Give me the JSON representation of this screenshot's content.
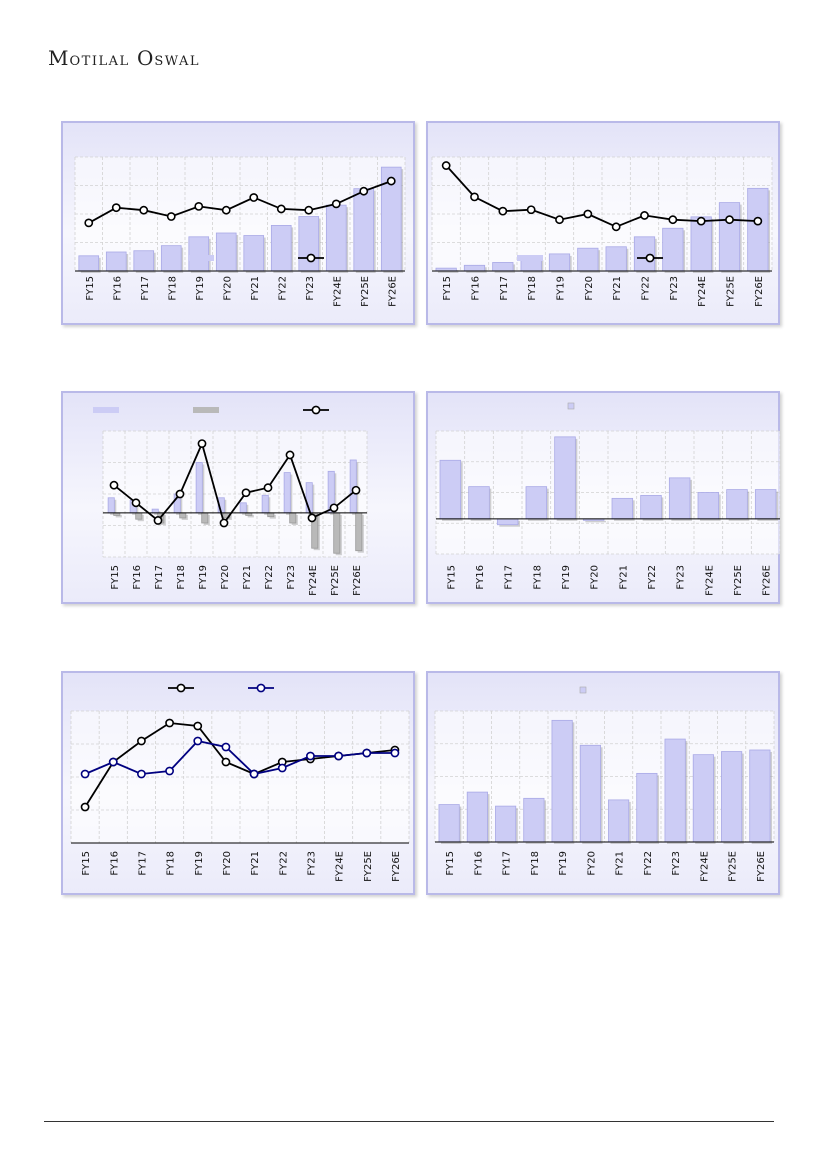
{
  "brand": {
    "first_cap": "M",
    "first_rest": "OTILAL",
    "second_cap": "O",
    "second_rest": "SWAL"
  },
  "colors": {
    "bar": "#ccccf5",
    "bar_stroke": "#a9a9e6",
    "bar_neg": "#b9b9b9",
    "line": "#000000",
    "line2": "#000080",
    "marker_fill": "#ffffff"
  },
  "chart_data": [
    {
      "id": "c1",
      "type": "bar+line",
      "categories": [
        "FY15",
        "FY16",
        "FY17",
        "FY18",
        "FY19",
        "FY20",
        "FY21",
        "FY22",
        "FY23",
        "FY24E",
        "FY25E",
        "FY26E"
      ],
      "series": [
        {
          "kind": "bar",
          "values": [
            12,
            15,
            16,
            20,
            27,
            30,
            28,
            36,
            43,
            52,
            65,
            82
          ]
        },
        {
          "kind": "line",
          "values": [
            38,
            50,
            48,
            43,
            51,
            48,
            58,
            49,
            48,
            53,
            63,
            71
          ]
        }
      ],
      "legend": [
        "bar",
        "line"
      ],
      "grid": true
    },
    {
      "id": "c2",
      "type": "bar+line",
      "categories": [
        "FY15",
        "FY16",
        "FY17",
        "FY18",
        "FY19",
        "FY20",
        "FY21",
        "FY22",
        "FY23",
        "FY24E",
        "FY25E",
        "FY26E"
      ],
      "series": [
        {
          "kind": "bar",
          "values": [
            2,
            4,
            6,
            9,
            12,
            16,
            17,
            24,
            30,
            38,
            48,
            58
          ]
        },
        {
          "kind": "line",
          "values": [
            74,
            52,
            42,
            43,
            36,
            40,
            31,
            39,
            36,
            35,
            36,
            35
          ]
        }
      ],
      "legend": [
        "bar",
        "line"
      ],
      "grid": true
    },
    {
      "id": "c3",
      "type": "bar+line",
      "categories": [
        "FY15",
        "FY16",
        "FY17",
        "FY18",
        "FY19",
        "FY20",
        "FY21",
        "FY22",
        "FY23",
        "FY24E",
        "FY25E",
        "FY26E"
      ],
      "series": [
        {
          "kind": "bar",
          "values": [
            12,
            10,
            3,
            15,
            40,
            12,
            8,
            14,
            32,
            24,
            33,
            42
          ]
        },
        {
          "kind": "bar_neg",
          "values": [
            -2,
            -5,
            -8,
            -4,
            -8,
            -4,
            -2,
            -3,
            -8,
            -28,
            -32,
            -30
          ]
        },
        {
          "kind": "line",
          "values": [
            22,
            8,
            -6,
            15,
            55,
            -8,
            16,
            20,
            46,
            -4,
            4,
            18
          ]
        }
      ],
      "legend": [
        "bar",
        "bar_neg",
        "line"
      ],
      "grid": true
    },
    {
      "id": "c4",
      "type": "bar",
      "categories": [
        "FY15",
        "FY16",
        "FY17",
        "FY18",
        "FY19",
        "FY20",
        "FY21",
        "FY22",
        "FY23",
        "FY24E",
        "FY25E",
        "FY26E"
      ],
      "series": [
        {
          "kind": "bar",
          "values": [
            20,
            11,
            -2,
            11,
            28,
            -0.5,
            7,
            8,
            14,
            9,
            10,
            10
          ]
        }
      ],
      "legend": [
        "bar"
      ],
      "grid": true
    },
    {
      "id": "c5",
      "type": "line",
      "categories": [
        "FY15",
        "FY16",
        "FY17",
        "FY18",
        "FY19",
        "FY20",
        "FY21",
        "FY22",
        "FY23",
        "FY24E",
        "FY25E",
        "FY26E"
      ],
      "series": [
        {
          "kind": "line",
          "values": [
            12,
            27,
            34,
            40,
            39,
            27,
            23,
            27,
            28,
            29,
            30,
            31
          ]
        },
        {
          "kind": "line2",
          "values": [
            23,
            27,
            23,
            24,
            34,
            32,
            23,
            25,
            29,
            29,
            30,
            30
          ]
        }
      ],
      "legend": [
        "line",
        "line2"
      ],
      "grid": true
    },
    {
      "id": "c6",
      "type": "bar",
      "categories": [
        "FY15",
        "FY16",
        "FY17",
        "FY18",
        "FY19",
        "FY20",
        "FY21",
        "FY22",
        "FY23",
        "FY24E",
        "FY25E",
        "FY26E"
      ],
      "series": [
        {
          "kind": "bar",
          "values": [
            12,
            16,
            11.5,
            14,
            39,
            31,
            13.5,
            22,
            33,
            28,
            29,
            29.5
          ]
        }
      ],
      "legend": [
        "bar"
      ],
      "grid": true
    }
  ]
}
